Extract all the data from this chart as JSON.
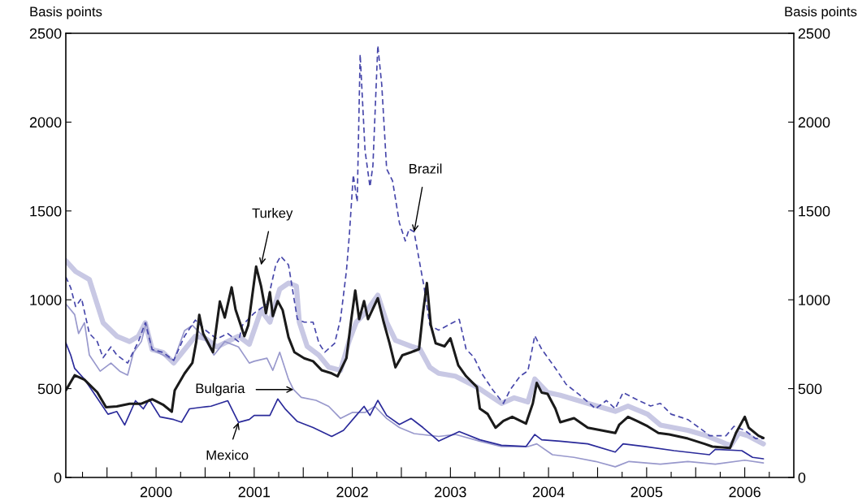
{
  "chart_data": {
    "type": "line",
    "ylabel": "Basis points",
    "y2label": "Basis points",
    "xlim": [
      1999.08,
      2006.5
    ],
    "ylim": [
      0,
      2500
    ],
    "yticks": [
      0,
      500,
      1000,
      1500,
      2000,
      2500
    ],
    "y2lim": [
      0,
      2500
    ],
    "y2ticks": [
      0,
      500,
      1000,
      1500,
      2000,
      2500
    ],
    "xticks": [
      {
        "value": 1999.25,
        "label": null
      },
      {
        "value": 1999.5,
        "label": null
      },
      {
        "value": 1999.75,
        "label": null
      },
      2000,
      {
        "value": 2000.25,
        "label": null
      },
      {
        "value": 2000.5,
        "label": null
      },
      {
        "value": 2000.75,
        "label": null
      },
      2001,
      {
        "value": 2001.25,
        "label": null
      },
      {
        "value": 2001.5,
        "label": null
      },
      {
        "value": 2001.75,
        "label": null
      },
      2002,
      {
        "value": 2002.25,
        "label": null
      },
      {
        "value": 2002.5,
        "label": null
      },
      {
        "value": 2002.75,
        "label": null
      },
      2003,
      {
        "value": 2003.25,
        "label": null
      },
      {
        "value": 2003.5,
        "label": null
      },
      {
        "value": 2003.75,
        "label": null
      },
      2004,
      {
        "value": 2004.25,
        "label": null
      },
      {
        "value": 2004.5,
        "label": null
      },
      {
        "value": 2004.75,
        "label": null
      },
      2005,
      {
        "value": 2005.25,
        "label": null
      },
      {
        "value": 2005.5,
        "label": null
      },
      {
        "value": 2005.75,
        "label": null
      },
      2006,
      {
        "value": 2006.25,
        "label": null
      }
    ],
    "grid": false,
    "legend": false,
    "series": [
      {
        "color": "#c8c8e4",
        "line_style": "solid",
        "x": [
          1999.08,
          1999.18,
          1999.32,
          1999.46,
          1999.6,
          1999.73,
          1999.82,
          1999.89,
          1999.96,
          2000.07,
          2000.18,
          2000.29,
          2000.4,
          2000.51,
          2000.62,
          2000.73,
          2000.84,
          2000.95,
          2001.07,
          2001.16,
          2001.26,
          2001.35,
          2001.43,
          2001.46,
          2001.54,
          2001.66,
          2001.76,
          2001.88,
          2001.97,
          2002.04,
          2002.13,
          2002.26,
          2002.35,
          2002.44,
          2002.6,
          2002.69,
          2002.79,
          2002.88,
          2003.05,
          2003.27,
          2003.52,
          2003.65,
          2003.79,
          2003.86,
          2003.99,
          2004.12,
          2004.4,
          2004.68,
          2004.81,
          2005.01,
          2005.14,
          2005.42,
          2005.61,
          2005.81,
          2005.86,
          2005.94,
          2006.03,
          2006.19
        ],
        "values": [
          1220,
          1159,
          1114,
          871,
          795,
          765,
          795,
          871,
          720,
          704,
          644,
          720,
          795,
          780,
          735,
          765,
          795,
          750,
          942,
          874,
          1060,
          1094,
          1077,
          874,
          738,
          688,
          620,
          603,
          772,
          874,
          925,
          1026,
          874,
          772,
          738,
          722,
          620,
          586,
          570,
          509,
          417,
          448,
          425,
          554,
          478,
          463,
          417,
          372,
          402,
          356,
          295,
          265,
          235,
          189,
          181,
          250,
          235,
          189
        ]
      },
      {
        "color": "#9898cc",
        "line_style": "solid",
        "x": [
          1999.08,
          1999.17,
          1999.21,
          1999.27,
          1999.32,
          1999.43,
          1999.54,
          1999.63,
          1999.71,
          1999.77,
          1999.85,
          1999.9,
          1999.96,
          2000.07,
          2000.18,
          2000.29,
          2000.37,
          2000.48,
          2000.59,
          2000.7,
          2000.84,
          2000.95,
          2001.0,
          2001.13,
          2001.19,
          2001.26,
          2001.35,
          2001.4,
          2001.48,
          2001.63,
          2001.76,
          2001.88,
          2002.0,
          2002.13,
          2002.23,
          2002.35,
          2002.48,
          2002.63,
          2002.88,
          2003.05,
          2003.3,
          2003.52,
          2003.79,
          2003.88,
          2004.04,
          2004.26,
          2004.48,
          2004.68,
          2004.82,
          2005.14,
          2005.42,
          2005.7,
          2006.0,
          2006.19
        ],
        "values": [
          977,
          917,
          810,
          871,
          689,
          598,
          644,
          598,
          576,
          704,
          765,
          871,
          720,
          689,
          659,
          826,
          856,
          795,
          689,
          765,
          735,
          644,
          654,
          671,
          603,
          705,
          552,
          495,
          451,
          434,
          400,
          332,
          366,
          366,
          400,
          332,
          281,
          247,
          231,
          242,
          204,
          174,
          174,
          189,
          128,
          113,
          90,
          60,
          90,
          75,
          90,
          75,
          97,
          82
        ]
      },
      {
        "color": "#2a2a9a",
        "line_style": "solid",
        "x": [
          1999.08,
          1999.13,
          1999.17,
          1999.27,
          1999.4,
          1999.51,
          1999.6,
          1999.68,
          1999.79,
          1999.87,
          1999.93,
          2000.04,
          2000.18,
          2000.26,
          2000.34,
          2000.45,
          2000.56,
          2000.73,
          2000.84,
          2000.95,
          2001.0,
          2001.16,
          2001.24,
          2001.32,
          2001.44,
          2001.6,
          2001.79,
          2001.91,
          2002.04,
          2002.12,
          2002.18,
          2002.26,
          2002.35,
          2002.48,
          2002.6,
          2002.72,
          2002.88,
          2003.09,
          2003.3,
          2003.52,
          2003.77,
          2003.86,
          2003.93,
          2004.12,
          2004.4,
          2004.68,
          2004.76,
          2004.98,
          2005.28,
          2005.64,
          2005.7,
          2005.97,
          2006.08,
          2006.19
        ],
        "values": [
          758,
          689,
          614,
          553,
          447,
          356,
          371,
          295,
          432,
          386,
          439,
          341,
          326,
          311,
          386,
          394,
          401,
          432,
          310,
          326,
          349,
          349,
          442,
          383,
          315,
          281,
          231,
          265,
          349,
          400,
          349,
          434,
          349,
          298,
          332,
          281,
          205,
          258,
          212,
          181,
          174,
          242,
          212,
          204,
          189,
          143,
          189,
          174,
          151,
          128,
          158,
          151,
          113,
          105
        ]
      },
      {
        "color": "#4646aa",
        "line_style": "dashed",
        "x": [
          1999.08,
          1999.13,
          1999.18,
          1999.24,
          1999.32,
          1999.4,
          1999.46,
          1999.54,
          1999.6,
          1999.71,
          1999.82,
          1999.89,
          1999.96,
          2000.07,
          2000.18,
          2000.29,
          2000.4,
          2000.51,
          2000.62,
          2000.73,
          2000.84,
          2000.88,
          2001.0,
          2001.13,
          2001.22,
          2001.27,
          2001.35,
          2001.44,
          2001.51,
          2001.6,
          2001.66,
          2001.72,
          2001.82,
          2001.88,
          2001.94,
          2001.97,
          2002.01,
          2002.05,
          2002.08,
          2002.13,
          2002.18,
          2002.21,
          2002.26,
          2002.3,
          2002.35,
          2002.41,
          2002.48,
          2002.54,
          2002.58,
          2002.63,
          2002.68,
          2002.73,
          2002.79,
          2002.88,
          2003.09,
          2003.16,
          2003.24,
          2003.32,
          2003.43,
          2003.54,
          2003.61,
          2003.71,
          2003.79,
          2003.86,
          2003.93,
          2004.07,
          2004.18,
          2004.32,
          2004.48,
          2004.59,
          2004.68,
          2004.76,
          2004.92,
          2005.04,
          2005.14,
          2005.25,
          2005.42,
          2005.61,
          2005.64,
          2005.81,
          2005.89,
          2006.0,
          2006.11,
          2006.19
        ],
        "values": [
          1129,
          1068,
          962,
          1008,
          810,
          765,
          674,
          735,
          689,
          644,
          765,
          871,
          720,
          704,
          659,
          795,
          886,
          826,
          780,
          810,
          765,
          857,
          925,
          976,
          1196,
          1246,
          1196,
          891,
          874,
          874,
          755,
          705,
          755,
          891,
          1162,
          1365,
          1703,
          1551,
          2381,
          1839,
          1636,
          1754,
          2431,
          2211,
          1737,
          1670,
          1433,
          1331,
          1399,
          1382,
          1229,
          1077,
          857,
          829,
          890,
          722,
          676,
          585,
          494,
          417,
          494,
          570,
          600,
          798,
          722,
          615,
          524,
          463,
          387,
          433,
          387,
          478,
          433,
          402,
          417,
          356,
          326,
          250,
          235,
          235,
          288,
          265,
          219,
          219
        ]
      },
      {
        "color": "#1a1a1a",
        "line_style": "solid",
        "x": [
          1999.08,
          1999.17,
          1999.27,
          1999.4,
          1999.49,
          1999.6,
          1999.73,
          1999.85,
          1999.96,
          2000.07,
          2000.16,
          2000.19,
          2000.29,
          2000.37,
          2000.41,
          2000.44,
          2000.48,
          2000.58,
          2000.65,
          2000.7,
          2000.77,
          2000.81,
          2000.9,
          2000.94,
          2001.02,
          2001.07,
          2001.12,
          2001.16,
          2001.19,
          2001.24,
          2001.29,
          2001.35,
          2001.41,
          2001.51,
          2001.6,
          2001.69,
          2001.79,
          2001.85,
          2001.94,
          2001.99,
          2002.03,
          2002.07,
          2002.12,
          2002.16,
          2002.26,
          2002.32,
          2002.38,
          2002.44,
          2002.51,
          2002.6,
          2002.68,
          2002.72,
          2002.76,
          2002.8,
          2002.85,
          2002.94,
          2003.0,
          2003.08,
          2003.16,
          2003.27,
          2003.3,
          2003.38,
          2003.46,
          2003.54,
          2003.63,
          2003.77,
          2003.84,
          2003.88,
          2003.93,
          2003.99,
          2004.07,
          2004.12,
          2004.26,
          2004.4,
          2004.54,
          2004.68,
          2004.72,
          2004.81,
          2004.9,
          2005.01,
          2005.12,
          2005.23,
          2005.42,
          2005.59,
          2005.67,
          2005.85,
          2005.91,
          2006.0,
          2006.04,
          2006.14,
          2006.19
        ],
        "values": [
          490,
          575,
          550,
          480,
          395,
          400,
          415,
          415,
          440,
          410,
          370,
          490,
          585,
          645,
          765,
          915,
          810,
          705,
          990,
          900,
          1070,
          945,
          795,
          857,
          1187,
          1077,
          925,
          1043,
          908,
          993,
          942,
          789,
          705,
          671,
          654,
          603,
          586,
          569,
          671,
          891,
          1052,
          891,
          993,
          891,
          1009,
          874,
          755,
          620,
          688,
          705,
          722,
          925,
          1094,
          857,
          755,
          738,
          783,
          631,
          570,
          509,
          387,
          357,
          280,
          318,
          341,
          303,
          417,
          532,
          478,
          471,
          387,
          311,
          334,
          280,
          265,
          250,
          296,
          341,
          318,
          288,
          250,
          242,
          219,
          189,
          174,
          166,
          250,
          341,
          280,
          235,
          222
        ]
      }
    ],
    "annotations": [
      {
        "text": "Turkey",
        "x": 2001.07,
        "y": 1196
      },
      {
        "text": "Brazil",
        "x": 2002.63,
        "y": 1382
      },
      {
        "text": "Bulgaria",
        "x": 2001.4,
        "y": 495
      },
      {
        "text": "Mexico",
        "x": 2000.84,
        "y": 310
      }
    ]
  }
}
